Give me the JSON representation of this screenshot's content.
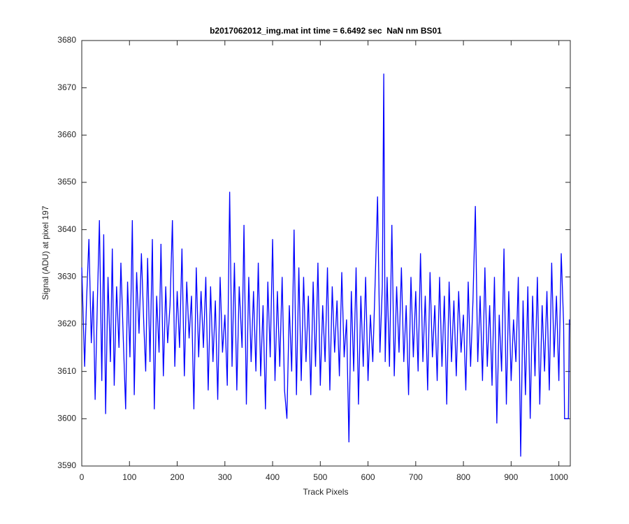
{
  "chart_data": {
    "type": "line",
    "title": "b2017062012_img.mat int time = 6.6492 sec  NaN nm BS01",
    "x_label": "Track Pixels",
    "y_label": "Signal (ADU) at pixel 197",
    "xlim": [
      0,
      1024
    ],
    "ylim": [
      3590,
      3680
    ],
    "xticks": [
      0,
      100,
      200,
      300,
      400,
      500,
      600,
      700,
      800,
      900,
      1000
    ],
    "yticks": [
      3590,
      3600,
      3610,
      3620,
      3630,
      3640,
      3650,
      3660,
      3670,
      3680
    ],
    "grid": false,
    "x": [
      0,
      6,
      10,
      15,
      20,
      24,
      28,
      33,
      37,
      42,
      46,
      50,
      55,
      60,
      64,
      68,
      73,
      78,
      82,
      87,
      92,
      96,
      101,
      106,
      110,
      115,
      120,
      125,
      130,
      134,
      138,
      143,
      148,
      152,
      157,
      162,
      166,
      171,
      176,
      180,
      185,
      190,
      195,
      200,
      205,
      210,
      215,
      220,
      225,
      230,
      235,
      240,
      245,
      250,
      255,
      260,
      265,
      270,
      275,
      280,
      285,
      290,
      295,
      300,
      305,
      310,
      315,
      320,
      325,
      330,
      336,
      340,
      345,
      350,
      355,
      360,
      365,
      370,
      375,
      380,
      385,
      390,
      395,
      400,
      405,
      410,
      415,
      420,
      425,
      430,
      435,
      440,
      445,
      450,
      455,
      460,
      465,
      470,
      475,
      480,
      485,
      490,
      495,
      500,
      505,
      510,
      515,
      520,
      525,
      530,
      535,
      540,
      545,
      550,
      555,
      560,
      565,
      570,
      575,
      580,
      585,
      590,
      595,
      600,
      605,
      610,
      615,
      620,
      625,
      630,
      633,
      636,
      640,
      645,
      650,
      655,
      660,
      665,
      670,
      675,
      680,
      685,
      690,
      695,
      700,
      705,
      710,
      715,
      720,
      725,
      730,
      735,
      740,
      745,
      750,
      755,
      760,
      765,
      770,
      775,
      780,
      785,
      790,
      795,
      800,
      805,
      810,
      815,
      820,
      825,
      830,
      835,
      840,
      845,
      850,
      855,
      860,
      865,
      870,
      875,
      880,
      885,
      890,
      895,
      900,
      905,
      910,
      915,
      920,
      925,
      930,
      935,
      940,
      945,
      950,
      955,
      960,
      965,
      970,
      975,
      980,
      985,
      990,
      995,
      1000,
      1005,
      1010,
      1012,
      1016,
      1020,
      1022
    ],
    "series": [
      {
        "name": "signal",
        "color": "#0000ff",
        "values": [
          3632,
          3611,
          3625,
          3638,
          3616,
          3627,
          3604,
          3626,
          3642,
          3608,
          3639,
          3601,
          3630,
          3612,
          3636,
          3607,
          3628,
          3615,
          3633,
          3617,
          3602,
          3629,
          3613,
          3642,
          3605,
          3631,
          3618,
          3635,
          3620,
          3610,
          3634,
          3612,
          3638,
          3602,
          3626,
          3614,
          3637,
          3609,
          3628,
          3616,
          3624,
          3642,
          3611,
          3627,
          3615,
          3636,
          3609,
          3629,
          3617,
          3626,
          3602,
          3632,
          3613,
          3627,
          3615,
          3630,
          3606,
          3628,
          3612,
          3625,
          3604,
          3630,
          3614,
          3622,
          3607,
          3648,
          3611,
          3633,
          3606,
          3628,
          3615,
          3641,
          3603,
          3630,
          3612,
          3627,
          3610,
          3633,
          3609,
          3624,
          3602,
          3629,
          3613,
          3638,
          3608,
          3627,
          3611,
          3630,
          3606,
          3600,
          3624,
          3610,
          3640,
          3605,
          3632,
          3608,
          3630,
          3612,
          3626,
          3605,
          3629,
          3611,
          3633,
          3607,
          3624,
          3612,
          3632,
          3606,
          3628,
          3614,
          3625,
          3609,
          3631,
          3613,
          3621,
          3595,
          3627,
          3610,
          3632,
          3603,
          3626,
          3611,
          3630,
          3608,
          3622,
          3612,
          3629,
          3647,
          3614,
          3628,
          3673,
          3612,
          3630,
          3611,
          3641,
          3609,
          3628,
          3614,
          3632,
          3612,
          3624,
          3605,
          3630,
          3613,
          3627,
          3610,
          3635,
          3612,
          3626,
          3606,
          3631,
          3613,
          3624,
          3608,
          3630,
          3611,
          3626,
          3603,
          3629,
          3612,
          3625,
          3609,
          3627,
          3614,
          3622,
          3606,
          3629,
          3611,
          3625,
          3645,
          3612,
          3626,
          3608,
          3632,
          3611,
          3624,
          3607,
          3630,
          3599,
          3622,
          3610,
          3636,
          3603,
          3627,
          3608,
          3621,
          3612,
          3630,
          3592,
          3625,
          3605,
          3628,
          3600,
          3626,
          3609,
          3630,
          3603,
          3624,
          3610,
          3627,
          3606,
          3633,
          3613,
          3626,
          3608,
          3635,
          3620,
          3600,
          3600,
          3600,
          3621
        ]
      }
    ]
  }
}
